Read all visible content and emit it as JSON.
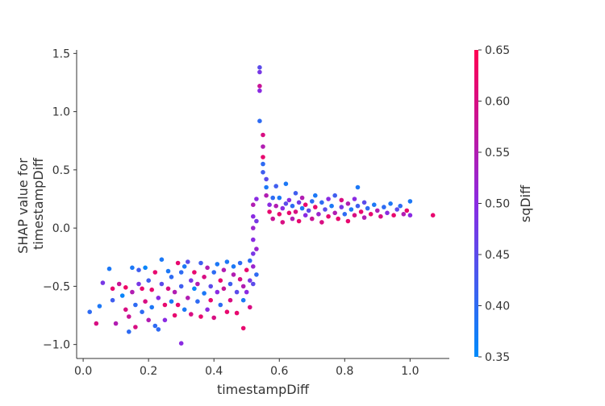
{
  "chart_data": {
    "type": "scatter",
    "xlabel": "timestampDiff",
    "ylabel_lines": [
      "SHAP value for",
      "timestampDiff"
    ],
    "xlim": [
      -0.02,
      1.12
    ],
    "ylim": [
      -1.12,
      1.53
    ],
    "x_ticks": [
      0.0,
      0.2,
      0.4,
      0.6,
      0.8,
      1.0
    ],
    "x_tick_labels": [
      "0.0",
      "0.2",
      "0.4",
      "0.6",
      "0.8",
      "1.0"
    ],
    "y_ticks": [
      -1.0,
      -0.5,
      0.0,
      0.5,
      1.0,
      1.5
    ],
    "y_tick_labels": [
      "−1.0",
      "−0.5",
      "0.0",
      "0.5",
      "1.0",
      "1.5"
    ],
    "color_feature": "sqDiff",
    "colorbar": {
      "label": "sqDiff",
      "min": 0.35,
      "max": 0.65,
      "ticks": [
        0.35,
        0.4,
        0.45,
        0.5,
        0.55,
        0.6,
        0.65
      ],
      "tick_labels": [
        "0.35",
        "0.40",
        "0.45",
        "0.50",
        "0.55",
        "0.60",
        "0.65"
      ],
      "cmap_low": "#008bfb",
      "cmap_mid": "#8a2be2",
      "cmap_high": "#ff0052"
    },
    "grid": false,
    "points": [
      [
        0.02,
        -0.72,
        0.4
      ],
      [
        0.04,
        -0.82,
        0.6
      ],
      [
        0.05,
        -0.67,
        0.38
      ],
      [
        0.06,
        -0.47,
        0.48
      ],
      [
        0.08,
        -0.35,
        0.38
      ],
      [
        0.09,
        -0.52,
        0.62
      ],
      [
        0.09,
        -0.62,
        0.42
      ],
      [
        0.1,
        -0.82,
        0.55
      ],
      [
        0.11,
        -0.48,
        0.58
      ],
      [
        0.12,
        -0.58,
        0.36
      ],
      [
        0.13,
        -0.51,
        0.63
      ],
      [
        0.13,
        -0.7,
        0.6
      ],
      [
        0.14,
        -0.76,
        0.58
      ],
      [
        0.14,
        -0.89,
        0.4
      ],
      [
        0.15,
        -0.34,
        0.38
      ],
      [
        0.15,
        -0.55,
        0.55
      ],
      [
        0.16,
        -0.85,
        0.6
      ],
      [
        0.16,
        -0.66,
        0.4
      ],
      [
        0.17,
        -0.48,
        0.48
      ],
      [
        0.17,
        -0.36,
        0.42
      ],
      [
        0.18,
        -0.52,
        0.62
      ],
      [
        0.18,
        -0.72,
        0.4
      ],
      [
        0.19,
        -0.34,
        0.36
      ],
      [
        0.19,
        -0.63,
        0.6
      ],
      [
        0.2,
        -0.79,
        0.55
      ],
      [
        0.2,
        -0.45,
        0.42
      ],
      [
        0.21,
        -0.53,
        0.62
      ],
      [
        0.21,
        -0.68,
        0.38
      ],
      [
        0.22,
        -0.84,
        0.4
      ],
      [
        0.22,
        -0.38,
        0.62
      ],
      [
        0.23,
        -0.6,
        0.5
      ],
      [
        0.23,
        -0.87,
        0.4
      ],
      [
        0.24,
        -0.27,
        0.38
      ],
      [
        0.24,
        -0.48,
        0.45
      ],
      [
        0.25,
        -0.66,
        0.62
      ],
      [
        0.25,
        -0.79,
        0.5
      ],
      [
        0.26,
        -0.52,
        0.6
      ],
      [
        0.26,
        -0.37,
        0.38
      ],
      [
        0.27,
        -0.63,
        0.38
      ],
      [
        0.27,
        -0.42,
        0.4
      ],
      [
        0.28,
        -0.55,
        0.55
      ],
      [
        0.28,
        -0.75,
        0.62
      ],
      [
        0.29,
        -0.3,
        0.62
      ],
      [
        0.29,
        -0.66,
        0.62
      ],
      [
        0.3,
        -0.38,
        0.4
      ],
      [
        0.3,
        -0.5,
        0.42
      ],
      [
        0.3,
        -0.99,
        0.5
      ],
      [
        0.31,
        -0.7,
        0.38
      ],
      [
        0.31,
        -0.33,
        0.38
      ],
      [
        0.32,
        -0.6,
        0.55
      ],
      [
        0.32,
        -0.29,
        0.45
      ],
      [
        0.33,
        -0.45,
        0.48
      ],
      [
        0.33,
        -0.74,
        0.6
      ],
      [
        0.34,
        -0.52,
        0.36
      ],
      [
        0.34,
        -0.38,
        0.62
      ],
      [
        0.35,
        -0.63,
        0.4
      ],
      [
        0.35,
        -0.48,
        0.55
      ],
      [
        0.36,
        -0.76,
        0.62
      ],
      [
        0.36,
        -0.3,
        0.42
      ],
      [
        0.37,
        -0.56,
        0.38
      ],
      [
        0.37,
        -0.42,
        0.6
      ],
      [
        0.38,
        -0.7,
        0.5
      ],
      [
        0.38,
        -0.34,
        0.55
      ],
      [
        0.39,
        -0.5,
        0.45
      ],
      [
        0.39,
        -0.62,
        0.62
      ],
      [
        0.4,
        -0.38,
        0.4
      ],
      [
        0.4,
        -0.77,
        0.6
      ],
      [
        0.41,
        -0.55,
        0.5
      ],
      [
        0.41,
        -0.31,
        0.38
      ],
      [
        0.42,
        -0.45,
        0.62
      ],
      [
        0.42,
        -0.66,
        0.4
      ],
      [
        0.43,
        -0.36,
        0.55
      ],
      [
        0.43,
        -0.52,
        0.58
      ],
      [
        0.44,
        -0.72,
        0.62
      ],
      [
        0.44,
        -0.29,
        0.38
      ],
      [
        0.45,
        -0.48,
        0.42
      ],
      [
        0.45,
        -0.62,
        0.6
      ],
      [
        0.46,
        -0.4,
        0.55
      ],
      [
        0.46,
        -0.33,
        0.38
      ],
      [
        0.47,
        -0.55,
        0.45
      ],
      [
        0.47,
        -0.73,
        0.62
      ],
      [
        0.48,
        -0.44,
        0.6
      ],
      [
        0.48,
        -0.3,
        0.4
      ],
      [
        0.49,
        -0.62,
        0.38
      ],
      [
        0.49,
        -0.5,
        0.55
      ],
      [
        0.49,
        -0.86,
        0.62
      ],
      [
        0.5,
        -0.36,
        0.62
      ],
      [
        0.5,
        -0.55,
        0.5
      ],
      [
        0.51,
        -0.28,
        0.4
      ],
      [
        0.51,
        -0.45,
        0.48
      ],
      [
        0.51,
        -0.68,
        0.6
      ],
      [
        0.52,
        -0.33,
        0.52
      ],
      [
        0.52,
        -0.22,
        0.48
      ],
      [
        0.52,
        -0.1,
        0.5
      ],
      [
        0.52,
        0.0,
        0.52
      ],
      [
        0.52,
        0.1,
        0.5
      ],
      [
        0.52,
        0.2,
        0.55
      ],
      [
        0.52,
        -0.48,
        0.45
      ],
      [
        0.53,
        -0.4,
        0.4
      ],
      [
        0.53,
        0.25,
        0.5
      ],
      [
        0.53,
        -0.18,
        0.52
      ],
      [
        0.53,
        0.06,
        0.48
      ],
      [
        0.54,
        1.38,
        0.45
      ],
      [
        0.54,
        1.34,
        0.48
      ],
      [
        0.54,
        1.22,
        0.58
      ],
      [
        0.54,
        1.18,
        0.5
      ],
      [
        0.54,
        0.92,
        0.4
      ],
      [
        0.55,
        0.8,
        0.6
      ],
      [
        0.55,
        0.7,
        0.55
      ],
      [
        0.55,
        0.61,
        0.62
      ],
      [
        0.55,
        0.55,
        0.4
      ],
      [
        0.55,
        0.48,
        0.42
      ],
      [
        0.56,
        0.42,
        0.45
      ],
      [
        0.56,
        0.35,
        0.38
      ],
      [
        0.56,
        0.28,
        0.55
      ],
      [
        0.57,
        0.2,
        0.5
      ],
      [
        0.57,
        0.14,
        0.62
      ],
      [
        0.58,
        0.26,
        0.4
      ],
      [
        0.58,
        0.08,
        0.58
      ],
      [
        0.59,
        0.36,
        0.42
      ],
      [
        0.59,
        0.19,
        0.55
      ],
      [
        0.6,
        0.12,
        0.62
      ],
      [
        0.6,
        0.26,
        0.38
      ],
      [
        0.61,
        0.17,
        0.5
      ],
      [
        0.61,
        0.05,
        0.6
      ],
      [
        0.62,
        0.21,
        0.45
      ],
      [
        0.62,
        0.38,
        0.38
      ],
      [
        0.63,
        0.13,
        0.62
      ],
      [
        0.63,
        0.24,
        0.5
      ],
      [
        0.64,
        0.08,
        0.55
      ],
      [
        0.64,
        0.19,
        0.4
      ],
      [
        0.65,
        0.3,
        0.42
      ],
      [
        0.65,
        0.14,
        0.6
      ],
      [
        0.66,
        0.22,
        0.48
      ],
      [
        0.66,
        0.06,
        0.62
      ],
      [
        0.67,
        0.17,
        0.38
      ],
      [
        0.67,
        0.26,
        0.55
      ],
      [
        0.68,
        0.11,
        0.5
      ],
      [
        0.68,
        0.2,
        0.62
      ],
      [
        0.69,
        0.15,
        0.45
      ],
      [
        0.7,
        0.23,
        0.4
      ],
      [
        0.7,
        0.08,
        0.58
      ],
      [
        0.71,
        0.18,
        0.62
      ],
      [
        0.71,
        0.28,
        0.38
      ],
      [
        0.72,
        0.12,
        0.52
      ],
      [
        0.73,
        0.22,
        0.4
      ],
      [
        0.73,
        0.05,
        0.6
      ],
      [
        0.74,
        0.16,
        0.45
      ],
      [
        0.75,
        0.25,
        0.5
      ],
      [
        0.75,
        0.1,
        0.62
      ],
      [
        0.76,
        0.19,
        0.38
      ],
      [
        0.77,
        0.13,
        0.55
      ],
      [
        0.77,
        0.28,
        0.42
      ],
      [
        0.78,
        0.08,
        0.62
      ],
      [
        0.79,
        0.18,
        0.48
      ],
      [
        0.79,
        0.24,
        0.6
      ],
      [
        0.8,
        0.12,
        0.4
      ],
      [
        0.81,
        0.21,
        0.55
      ],
      [
        0.81,
        0.06,
        0.62
      ],
      [
        0.82,
        0.16,
        0.38
      ],
      [
        0.83,
        0.25,
        0.5
      ],
      [
        0.83,
        0.11,
        0.6
      ],
      [
        0.84,
        0.19,
        0.42
      ],
      [
        0.84,
        0.35,
        0.38
      ],
      [
        0.85,
        0.14,
        0.62
      ],
      [
        0.86,
        0.22,
        0.45
      ],
      [
        0.86,
        0.09,
        0.55
      ],
      [
        0.87,
        0.17,
        0.4
      ],
      [
        0.88,
        0.12,
        0.62
      ],
      [
        0.89,
        0.2,
        0.38
      ],
      [
        0.9,
        0.15,
        0.55
      ],
      [
        0.91,
        0.1,
        0.6
      ],
      [
        0.92,
        0.18,
        0.4
      ],
      [
        0.93,
        0.13,
        0.5
      ],
      [
        0.94,
        0.21,
        0.38
      ],
      [
        0.95,
        0.11,
        0.62
      ],
      [
        0.96,
        0.16,
        0.45
      ],
      [
        0.97,
        0.19,
        0.4
      ],
      [
        0.98,
        0.12,
        0.55
      ],
      [
        0.99,
        0.15,
        0.62
      ],
      [
        1.0,
        0.23,
        0.38
      ],
      [
        1.0,
        0.11,
        0.5
      ],
      [
        1.07,
        0.11,
        0.62
      ]
    ]
  }
}
